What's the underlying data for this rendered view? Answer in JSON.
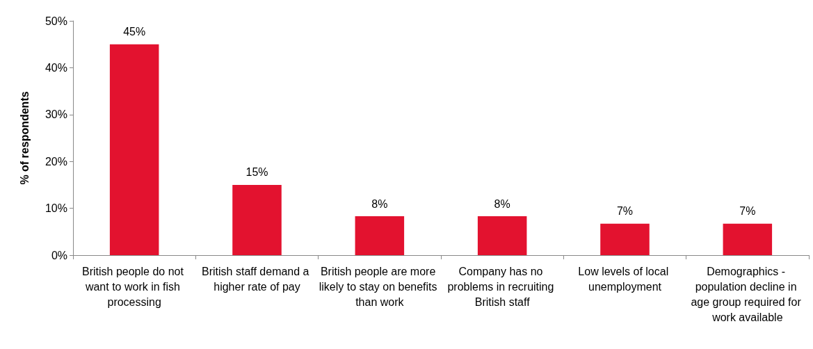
{
  "chart_data": {
    "type": "bar",
    "ylabel": "% of respondents",
    "categories": [
      "British people do not want to work in fish processing",
      "British staff demand a higher rate of pay",
      "British people are more likely to stay on benefits than work",
      "Company has no problems in recruiting British staff",
      "Low levels of local unemployment",
      "Demographics - population decline in age group required for work available"
    ],
    "values": [
      45,
      15,
      8.3,
      8.3,
      6.7,
      6.7
    ],
    "value_labels": [
      "45%",
      "15%",
      "8%",
      "8%",
      "7%",
      "7%"
    ],
    "color": "#e3122f",
    "ylim": [
      0,
      50
    ],
    "yticks": [
      {
        "value": 0,
        "label": "0%"
      },
      {
        "value": 10,
        "label": "10%"
      },
      {
        "value": 20,
        "label": "20%"
      },
      {
        "value": 30,
        "label": "30%"
      },
      {
        "value": 40,
        "label": "40%"
      },
      {
        "value": 50,
        "label": "50%"
      }
    ],
    "grid": false
  }
}
